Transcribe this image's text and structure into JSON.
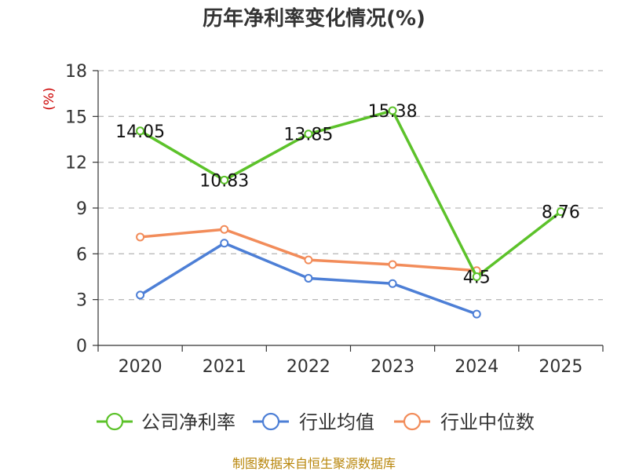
{
  "chart_data": {
    "type": "line",
    "title": "历年净利率变化情况(%)",
    "ylabel": "(%)",
    "xlabel": "",
    "categories": [
      "2020",
      "2021",
      "2022",
      "2023",
      "2024",
      "2025"
    ],
    "ylim": [
      0,
      18
    ],
    "yticks": [
      0,
      3,
      6,
      9,
      12,
      15,
      18
    ],
    "grid": true,
    "legend_position": "bottom",
    "series": [
      {
        "name": "公司净利率",
        "color": "#5cc22a",
        "values": [
          14.05,
          10.83,
          13.85,
          15.38,
          4.5,
          8.76
        ],
        "labels": [
          "14.05",
          "10.83",
          "13.85",
          "15.38",
          "4.5",
          "8.76"
        ]
      },
      {
        "name": "行业均值",
        "color": "#4d7fd6",
        "values": [
          3.3,
          6.7,
          4.4,
          4.05,
          2.05,
          null
        ]
      },
      {
        "name": "行业中位数",
        "color": "#f28c5a",
        "values": [
          7.1,
          7.6,
          5.6,
          5.3,
          4.9,
          null
        ]
      }
    ]
  },
  "source_text": "制图数据来自恒生聚源数据库"
}
